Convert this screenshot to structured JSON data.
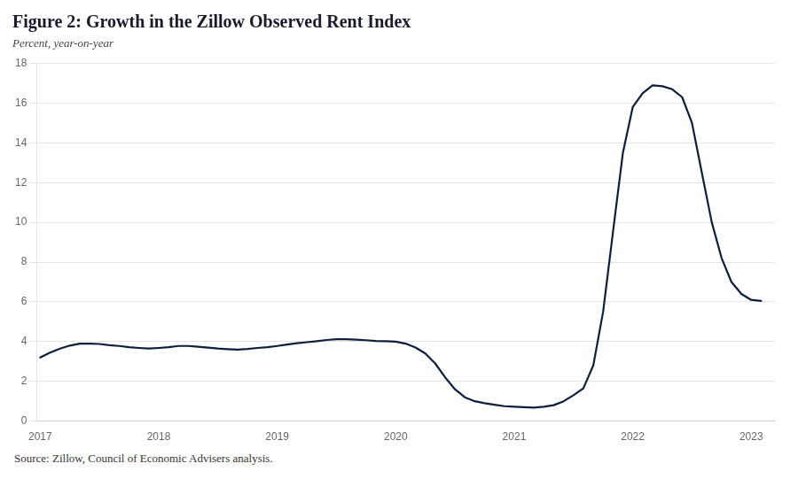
{
  "chart_data": {
    "type": "line",
    "title": "Figure 2: Growth in the Zillow Observed Rent Index",
    "subtitle": "Percent, year-on-year",
    "source": "Source: Zillow, Council of Economic Advisers analysis.",
    "color": "#0d1f3c",
    "grid": "y",
    "ylim": [
      0,
      18
    ],
    "yticks": [
      0,
      2,
      4,
      6,
      8,
      10,
      12,
      14,
      16,
      18
    ],
    "xlim": [
      2016.97,
      2023.2
    ],
    "xticks": [
      2017,
      2018,
      2019,
      2020,
      2021,
      2022,
      2023
    ],
    "x": [
      2017.0,
      2017.083,
      2017.167,
      2017.25,
      2017.333,
      2017.417,
      2017.5,
      2017.583,
      2017.667,
      2017.75,
      2017.833,
      2017.917,
      2018.0,
      2018.083,
      2018.167,
      2018.25,
      2018.333,
      2018.417,
      2018.5,
      2018.583,
      2018.667,
      2018.75,
      2018.833,
      2018.917,
      2019.0,
      2019.083,
      2019.167,
      2019.25,
      2019.333,
      2019.417,
      2019.5,
      2019.583,
      2019.667,
      2019.75,
      2019.833,
      2019.917,
      2020.0,
      2020.083,
      2020.167,
      2020.25,
      2020.333,
      2020.417,
      2020.5,
      2020.583,
      2020.667,
      2020.75,
      2020.833,
      2020.917,
      2021.0,
      2021.083,
      2021.167,
      2021.25,
      2021.333,
      2021.417,
      2021.5,
      2021.583,
      2021.667,
      2021.75,
      2021.833,
      2021.917,
      2022.0,
      2022.083,
      2022.167,
      2022.25,
      2022.333,
      2022.417,
      2022.5,
      2022.583,
      2022.667,
      2022.75,
      2022.833,
      2022.917,
      2023.0,
      2023.083
    ],
    "values": [
      3.2,
      3.45,
      3.65,
      3.8,
      3.9,
      3.9,
      3.88,
      3.82,
      3.78,
      3.72,
      3.68,
      3.65,
      3.68,
      3.72,
      3.78,
      3.78,
      3.74,
      3.7,
      3.65,
      3.62,
      3.6,
      3.63,
      3.68,
      3.72,
      3.78,
      3.85,
      3.92,
      3.97,
      4.02,
      4.08,
      4.12,
      4.12,
      4.1,
      4.07,
      4.03,
      4.02,
      4.0,
      3.9,
      3.7,
      3.4,
      2.9,
      2.2,
      1.6,
      1.2,
      1.0,
      0.9,
      0.82,
      0.75,
      0.72,
      0.7,
      0.68,
      0.72,
      0.8,
      1.0,
      1.3,
      1.65,
      2.8,
      5.5,
      9.5,
      13.5,
      15.8,
      16.5,
      16.9,
      16.85,
      16.7,
      16.3,
      15.0,
      12.5,
      10.0,
      8.2,
      7.0,
      6.4,
      6.1,
      6.05
    ]
  }
}
